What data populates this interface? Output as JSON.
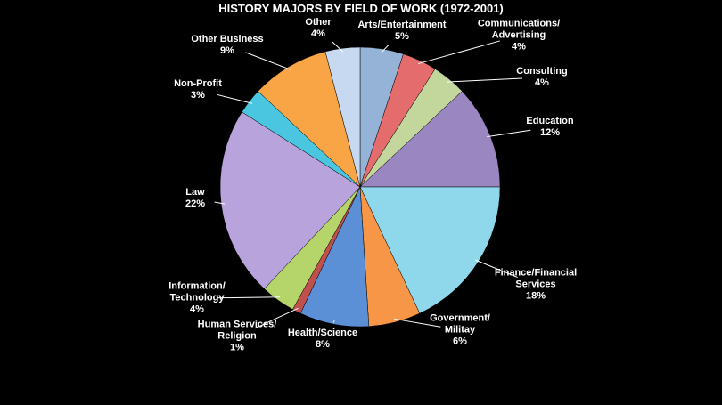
{
  "chart_data": {
    "type": "pie",
    "title": "HISTORY MAJORS BY FIELD OF WORK (1972-2001)",
    "categories": [
      "Arts/Entertainment",
      "Communications/\nAdvertising",
      "Consulting",
      "Education",
      "Finance/Financial\nServices",
      "Government/\nMilitay",
      "Health/Science",
      "Human Services/\nReligion",
      "Information/\nTechnology",
      "Law",
      "Non-Profit",
      "Other Business",
      "Other"
    ],
    "values": [
      5,
      4,
      4,
      12,
      18,
      6,
      8,
      1,
      4,
      22,
      3,
      9,
      4
    ],
    "value_labels": [
      "5%",
      "4%",
      "4%",
      "12%",
      "18%",
      "6%",
      "8%",
      "1%",
      "4%",
      "22%",
      "3%",
      "9%",
      "4%"
    ],
    "colors": [
      "#95b3d7",
      "#e46c6c",
      "#c3d69b",
      "#9a86c0",
      "#8fd8ec",
      "#f79646",
      "#5b8fd6",
      "#c0504d",
      "#b5d56a",
      "#b9a3dd",
      "#4bc6e0",
      "#f9a545",
      "#c6d9f1"
    ]
  }
}
